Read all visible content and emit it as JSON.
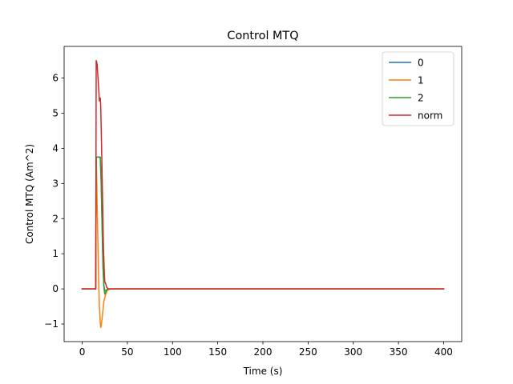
{
  "chart_data": {
    "type": "line",
    "title": "Control MTQ",
    "xlabel": "Time (s)",
    "ylabel": "Control MTQ (Am^2)",
    "xlim": [
      -20,
      420
    ],
    "ylim": [
      -1.5,
      6.9
    ],
    "xticks": [
      0,
      50,
      100,
      150,
      200,
      250,
      300,
      350,
      400
    ],
    "yticks": [
      -1,
      0,
      1,
      2,
      3,
      4,
      5,
      6
    ],
    "grid": false,
    "legend": "top-right",
    "series": [
      {
        "name": "0",
        "color": "#1f77b4",
        "points": [
          [
            0,
            0
          ],
          [
            15,
            0
          ],
          [
            15.5,
            3.75
          ],
          [
            20,
            3.75
          ],
          [
            21,
            3.0
          ],
          [
            22,
            1.8
          ],
          [
            23,
            0.6
          ],
          [
            24,
            0.1
          ],
          [
            25,
            -0.05
          ],
          [
            27,
            -0.05
          ],
          [
            29,
            0
          ],
          [
            400,
            0
          ]
        ]
      },
      {
        "name": "1",
        "color": "#ff7f0e",
        "points": [
          [
            0,
            0
          ],
          [
            15,
            0
          ],
          [
            15.5,
            3.75
          ],
          [
            16,
            3.2
          ],
          [
            17,
            1.8
          ],
          [
            18,
            0.5
          ],
          [
            19,
            -0.5
          ],
          [
            20,
            -0.95
          ],
          [
            20.5,
            -1.1
          ],
          [
            21,
            -1.05
          ],
          [
            22,
            -0.85
          ],
          [
            23,
            -0.6
          ],
          [
            24,
            -0.35
          ],
          [
            26,
            -0.15
          ],
          [
            28,
            -0.04
          ],
          [
            31,
            0
          ],
          [
            400,
            0
          ]
        ]
      },
      {
        "name": "2",
        "color": "#2ca02c",
        "points": [
          [
            0,
            0
          ],
          [
            15,
            0
          ],
          [
            15.5,
            3.75
          ],
          [
            20,
            3.75
          ],
          [
            21,
            3.1
          ],
          [
            22,
            1.9
          ],
          [
            23,
            0.8
          ],
          [
            24,
            0.05
          ],
          [
            25,
            -0.15
          ],
          [
            26,
            -0.1
          ],
          [
            27,
            -0.02
          ],
          [
            29,
            0
          ],
          [
            400,
            0
          ]
        ]
      },
      {
        "name": "norm",
        "color": "#d62728",
        "points": [
          [
            0,
            0
          ],
          [
            15,
            0
          ],
          [
            15.5,
            6.5
          ],
          [
            16.5,
            6.4
          ],
          [
            17.5,
            6.0
          ],
          [
            18.5,
            5.6
          ],
          [
            19,
            5.35
          ],
          [
            19.5,
            5.4
          ],
          [
            20,
            5.43
          ],
          [
            20.5,
            5.2
          ],
          [
            21.5,
            4.0
          ],
          [
            22.5,
            2.6
          ],
          [
            23.5,
            1.2
          ],
          [
            24.5,
            0.45
          ],
          [
            25,
            0.2
          ],
          [
            26,
            0.15
          ],
          [
            27,
            0.05
          ],
          [
            29,
            0
          ],
          [
            400,
            0
          ]
        ]
      }
    ]
  }
}
